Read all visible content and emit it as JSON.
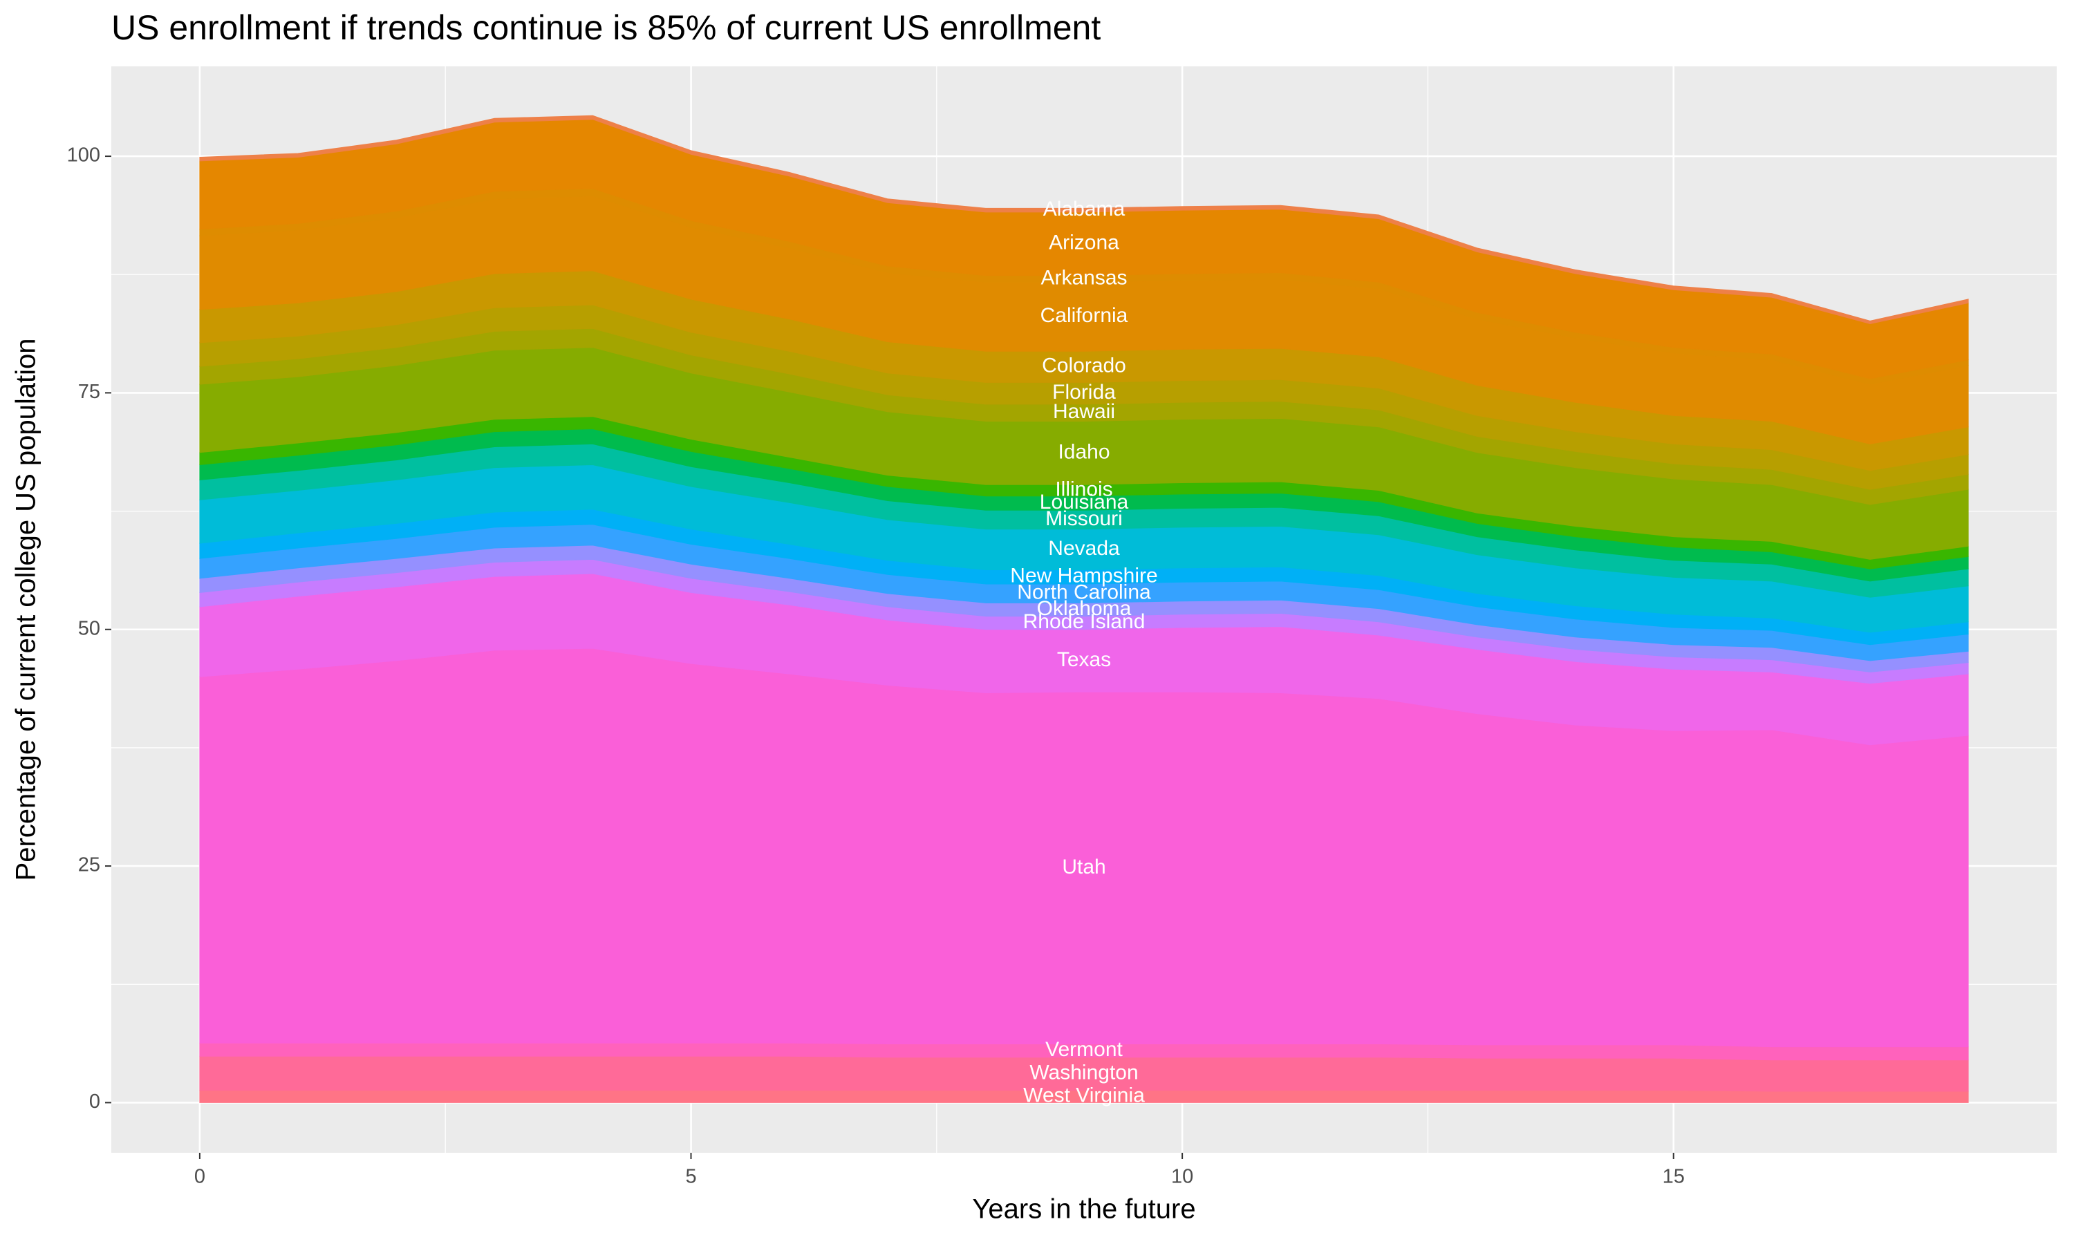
{
  "chart_data": {
    "type": "area",
    "title": "US enrollment if trends continue is 85% of current US enrollment",
    "x_label": "Years in the future",
    "y_label": "Percentage of current college US population",
    "stacked": true,
    "grid": true,
    "x": [
      0,
      1,
      2,
      3,
      4,
      5,
      6,
      7,
      8,
      9,
      10,
      11,
      12,
      13,
      14,
      15,
      16,
      17,
      18
    ],
    "xlim": [
      -0.9,
      18.9
    ],
    "xticks": [
      0,
      5,
      10,
      15
    ],
    "ylim": [
      -5.3,
      109.5
    ],
    "yticks": [
      0,
      25,
      50,
      75,
      100
    ],
    "series": [
      {
        "name": "Alabama",
        "color": "#EE8048",
        "values": [
          0.4,
          0.4,
          0.4,
          0.4,
          0.4,
          0.4,
          0.4,
          0.4,
          0.4,
          0.4,
          0.4,
          0.4,
          0.4,
          0.4,
          0.4,
          0.4,
          0.4,
          0.3,
          0.4
        ]
      },
      {
        "name": "Arizona",
        "color": "#E58700",
        "values": [
          7.2,
          7.0,
          7.1,
          7.3,
          7.3,
          7.0,
          6.9,
          6.7,
          6.7,
          6.7,
          6.7,
          6.7,
          6.7,
          6.4,
          6.2,
          6.1,
          6.0,
          5.8,
          6.0
        ]
      },
      {
        "name": "Arkansas",
        "color": "#DE8C00",
        "values": [
          0.7,
          0.7,
          0.7,
          0.8,
          0.8,
          0.7,
          0.7,
          0.7,
          0.7,
          0.7,
          0.7,
          0.7,
          0.7,
          0.7,
          0.6,
          0.6,
          0.6,
          0.6,
          0.6
        ]
      },
      {
        "name": "California",
        "color": "#E08B00",
        "values": [
          7.8,
          7.7,
          7.8,
          7.9,
          7.9,
          7.6,
          7.5,
          7.3,
          7.3,
          7.3,
          7.3,
          7.3,
          7.2,
          7.0,
          6.8,
          6.6,
          6.5,
          6.3,
          6.5
        ]
      },
      {
        "name": "Colorado",
        "color": "#C99800",
        "values": [
          3.5,
          3.5,
          3.5,
          3.6,
          3.6,
          3.5,
          3.4,
          3.3,
          3.3,
          3.3,
          3.3,
          3.3,
          3.3,
          3.2,
          3.1,
          3.0,
          3.0,
          2.8,
          2.9
        ]
      },
      {
        "name": "Florida",
        "color": "#B79F00",
        "values": [
          2.5,
          2.4,
          2.4,
          2.5,
          2.5,
          2.4,
          2.4,
          2.3,
          2.3,
          2.3,
          2.3,
          2.3,
          2.3,
          2.2,
          2.1,
          2.1,
          2.1,
          2.0,
          2.1
        ]
      },
      {
        "name": "Hawaii",
        "color": "#A3A500",
        "values": [
          1.9,
          1.9,
          1.9,
          2.0,
          2.0,
          1.9,
          1.9,
          1.8,
          1.8,
          1.8,
          1.8,
          1.8,
          1.8,
          1.7,
          1.7,
          1.6,
          1.6,
          1.6,
          1.6
        ]
      },
      {
        "name": "Idaho",
        "color": "#86AC00",
        "values": [
          7.2,
          7.0,
          7.1,
          7.3,
          7.3,
          7.0,
          6.9,
          6.7,
          6.7,
          6.7,
          6.7,
          6.7,
          6.7,
          6.4,
          6.2,
          6.1,
          6.0,
          5.8,
          6.0
        ]
      },
      {
        "name": "Illinois",
        "color": "#39B600",
        "values": [
          1.3,
          1.3,
          1.3,
          1.3,
          1.3,
          1.3,
          1.2,
          1.2,
          1.2,
          1.2,
          1.2,
          1.2,
          1.2,
          1.1,
          1.1,
          1.1,
          1.1,
          1.0,
          1.1
        ]
      },
      {
        "name": "Louisiana",
        "color": "#00BB4E",
        "values": [
          1.6,
          1.6,
          1.6,
          1.6,
          1.6,
          1.6,
          1.5,
          1.5,
          1.5,
          1.5,
          1.5,
          1.5,
          1.5,
          1.4,
          1.4,
          1.4,
          1.3,
          1.3,
          1.3
        ]
      },
      {
        "name": "Missouri",
        "color": "#00BFA0",
        "values": [
          2.1,
          2.1,
          2.1,
          2.2,
          2.2,
          2.1,
          2.1,
          2.0,
          2.0,
          2.0,
          2.0,
          2.0,
          2.0,
          1.9,
          1.9,
          1.8,
          1.8,
          1.7,
          1.8
        ]
      },
      {
        "name": "Nevada",
        "color": "#00BCD8",
        "values": [
          4.6,
          4.5,
          4.6,
          4.7,
          4.7,
          4.5,
          4.4,
          4.3,
          4.3,
          4.3,
          4.3,
          4.3,
          4.3,
          4.1,
          4.0,
          3.9,
          3.9,
          3.7,
          3.8
        ]
      },
      {
        "name": "New Hampshire",
        "color": "#00B0F6",
        "values": [
          1.6,
          1.6,
          1.6,
          1.6,
          1.6,
          1.6,
          1.5,
          1.5,
          1.5,
          1.5,
          1.5,
          1.5,
          1.5,
          1.4,
          1.4,
          1.4,
          1.3,
          1.3,
          1.3
        ]
      },
      {
        "name": "North Carolina",
        "color": "#35A2FF",
        "values": [
          2.1,
          2.1,
          2.1,
          2.2,
          2.2,
          2.1,
          2.1,
          2.0,
          2.0,
          2.0,
          2.0,
          2.0,
          2.0,
          1.9,
          1.9,
          1.8,
          1.8,
          1.7,
          1.8
        ]
      },
      {
        "name": "Oklahoma",
        "color": "#9590FF",
        "values": [
          1.5,
          1.5,
          1.5,
          1.5,
          1.5,
          1.5,
          1.4,
          1.4,
          1.4,
          1.4,
          1.4,
          1.4,
          1.4,
          1.3,
          1.3,
          1.3,
          1.3,
          1.2,
          1.2
        ]
      },
      {
        "name": "Rhode Island",
        "color": "#C77CFF",
        "values": [
          1.5,
          1.5,
          1.5,
          1.5,
          1.5,
          1.5,
          1.4,
          1.4,
          1.4,
          1.4,
          1.4,
          1.4,
          1.4,
          1.3,
          1.3,
          1.3,
          1.3,
          1.2,
          1.2
        ]
      },
      {
        "name": "Texas",
        "color": "#F066EA",
        "values": [
          7.4,
          7.7,
          7.8,
          7.8,
          7.9,
          7.5,
          7.3,
          6.9,
          6.7,
          6.6,
          6.8,
          7.0,
          6.7,
          6.8,
          6.7,
          6.5,
          6.1,
          6.5,
          6.5
        ]
      },
      {
        "name": "Utah",
        "color": "#FA5FD8",
        "values": [
          38.7,
          39.5,
          40.4,
          41.5,
          41.7,
          40.1,
          39.0,
          37.9,
          37.1,
          37.2,
          37.2,
          37.1,
          36.5,
          35.0,
          33.8,
          33.2,
          33.5,
          31.9,
          32.9
        ]
      },
      {
        "name": "Vermont",
        "color": "#FF62BC",
        "values": [
          1.4,
          1.4,
          1.4,
          1.4,
          1.4,
          1.4,
          1.4,
          1.4,
          1.4,
          1.4,
          1.4,
          1.4,
          1.4,
          1.4,
          1.4,
          1.4,
          1.4,
          1.4,
          1.4
        ]
      },
      {
        "name": "Washington",
        "color": "#FF6A98",
        "values": [
          3.6,
          3.6,
          3.6,
          3.6,
          3.6,
          3.6,
          3.6,
          3.5,
          3.5,
          3.5,
          3.5,
          3.5,
          3.5,
          3.4,
          3.4,
          3.4,
          3.3,
          3.3,
          3.3
        ]
      },
      {
        "name": "West Virginia",
        "color": "#FF7486",
        "values": [
          1.3,
          1.3,
          1.3,
          1.3,
          1.3,
          1.3,
          1.3,
          1.3,
          1.3,
          1.3,
          1.3,
          1.3,
          1.3,
          1.3,
          1.3,
          1.3,
          1.2,
          1.2,
          1.2
        ]
      }
    ]
  }
}
